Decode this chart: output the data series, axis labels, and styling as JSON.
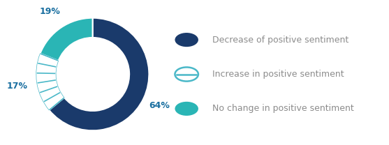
{
  "slices": [
    64,
    17,
    19
  ],
  "labels": [
    "64%",
    "17%",
    "19%"
  ],
  "colors": [
    "#1a3a6b",
    "lines",
    "#2ab5b5"
  ],
  "line_color": "#4ab8c8",
  "solid_colors": [
    "#1a3a6b",
    "#2ab5b5"
  ],
  "legend_labels": [
    "Decrease of positive sentiment",
    "Increase in positive sentiment",
    "No change in positive sentiment"
  ],
  "legend_colors": [
    "#1a3a6b",
    "#4ab8c8",
    "#2ab5b5"
  ],
  "legend_marker_styles": [
    "circle_filled",
    "circle_outline",
    "circle_filled"
  ],
  "background_color": "#ffffff",
  "text_color": "#8c8c8c",
  "label_color": "#1a6fa0",
  "label_fontsize": 9,
  "legend_fontsize": 9,
  "donut_inner_ratio": 0.65,
  "start_angle": 90,
  "n_hatch_lines": 7
}
